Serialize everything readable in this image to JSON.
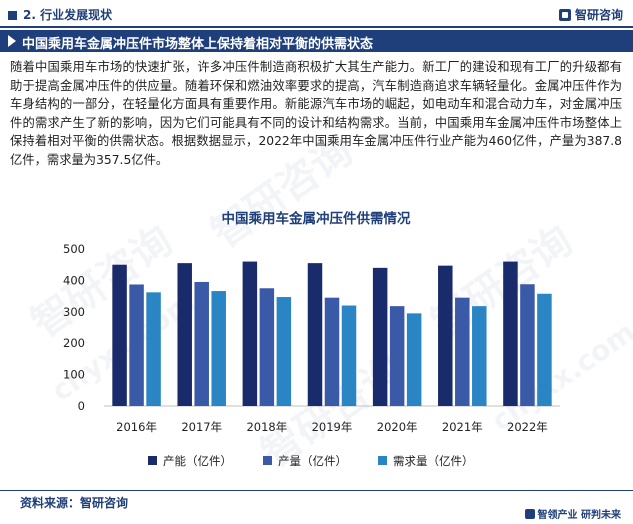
{
  "header": {
    "section": "2. 行业发展现状",
    "brand": "智研咨询",
    "title": "中国乘用车金属冲压件市场整体上保持着相对平衡的供需状态"
  },
  "body_text": "随着中国乘用车市场的快速扩张，许多冲压件制造商积极扩大其生产能力。新工厂的建设和现有工厂的升级都有助于提高金属冲压件的供应量。随着环保和燃油效率要求的提高，汽车制造商追求车辆轻量化。金属冲压件作为车身结构的一部分，在轻量化方面具有重要作用。新能源汽车市场的崛起，如电动车和混合动力车，对金属冲压件的需求产生了新的影响，因为它们可能具有不同的设计和结构需求。当前，中国乘用车金属冲压件市场整体上保持着相对平衡的供需状态。根据数据显示，2022年中国乘用车金属冲压件行业产能为460亿件，产量为387.8亿件，需求量为357.5亿件。",
  "watermarks": [
    "智研咨询",
    "智研咨询",
    "智研咨询",
    "智研咨询",
    "chyxx.com",
    "chyxx.com"
  ],
  "colors": {
    "primary": "#1f3f7a",
    "series": [
      "#1a2b6b",
      "#3a5aa8",
      "#2a85c4"
    ]
  },
  "chart_data": {
    "type": "bar",
    "title": "中国乘用车金属冲压件供需情况",
    "categories": [
      "2016年",
      "2017年",
      "2018年",
      "2019年",
      "2020年",
      "2021年",
      "2022年"
    ],
    "series": [
      {
        "name": "产能（亿件）",
        "values": [
          450,
          455,
          460,
          455,
          440,
          447,
          460
        ]
      },
      {
        "name": "产量（亿件）",
        "values": [
          387,
          395,
          375,
          345,
          318,
          345,
          387.8
        ]
      },
      {
        "name": "需求量（亿件）",
        "values": [
          362,
          366,
          347,
          320,
          295,
          318,
          357.5
        ]
      }
    ],
    "yticks": [
      0,
      100,
      200,
      300,
      400,
      500
    ],
    "ylim": [
      0,
      500
    ],
    "grid": false,
    "legend": "bottom"
  },
  "footer": {
    "source": "资料来源：智研咨询",
    "slogan": "智领产业  研判未来"
  }
}
